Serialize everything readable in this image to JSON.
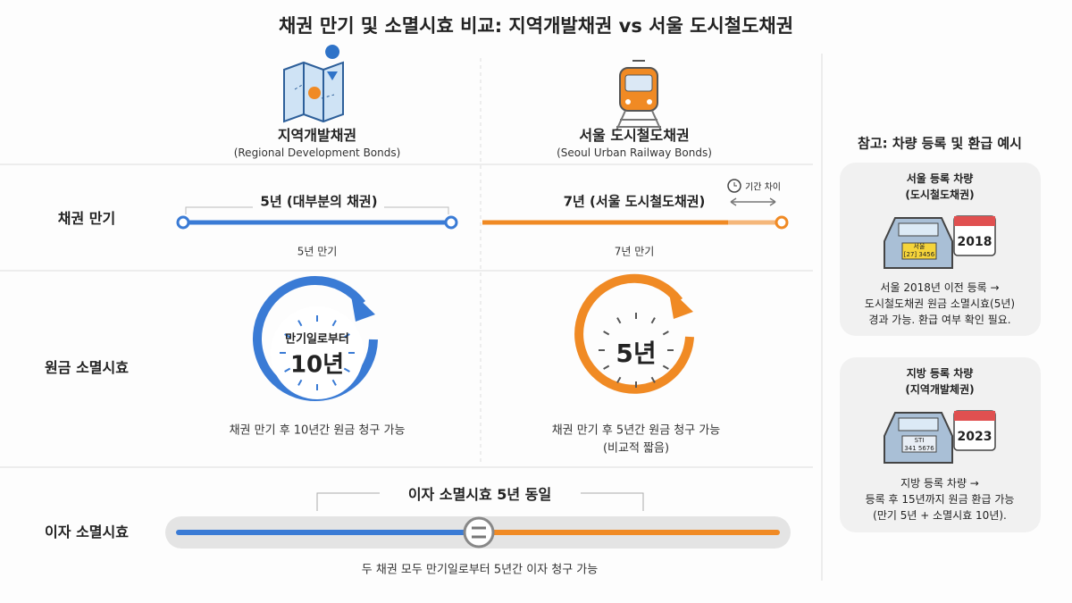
{
  "header": {
    "title": "채권 만기 및 소멸시효 비교: 지역개발채권 vs 서울 도시철도채권"
  },
  "columns": [
    {
      "name": "지역개발채권",
      "subtitle": "(Regional Development Bonds)"
    },
    {
      "name": "서울 도시철도채권",
      "subtitle": "(Seoul Urban Railway Bonds)"
    }
  ],
  "rows": [
    "채권 만기",
    "원금 소멸시효",
    "이자 소멸시효"
  ],
  "maturity": {
    "left": {
      "label": "5년 (대부분의 채권)",
      "caption": "5년 만기"
    },
    "right": {
      "label": "7년 (서울 도시철도채권)",
      "caption": "7년 만기"
    },
    "difference": "기간 차이"
  },
  "principal": {
    "left": {
      "clock_small": "만기일로부터",
      "clock_big": "10년",
      "caption": "채권 만기 후 10년간 원금 청구 가능"
    },
    "right": {
      "clock_big": "5년",
      "caption": "채권 만기 후 5년간 원금 청구 가능",
      "note": "(비교적 짧음)"
    }
  },
  "interest": {
    "label": "이자 소멸시효 5년 동일",
    "caption": "두 채권 모두 만기일로부터 5년간 이자 청구 가능"
  },
  "sidebar": {
    "title": "참고: 차량 등록 및 환급 예시",
    "cards": [
      {
        "title": "서울 등록 차량",
        "subtitle": "(도시철도채권)",
        "plate_top": "서울",
        "plate_bottom": "[27] 3456",
        "year": "2018",
        "lines": [
          "서울 2018년 이전 등록 →",
          "도시철도채권 원금 소멸시효(5년)",
          "경과 가능. 환급 여부 확인 필요."
        ]
      },
      {
        "title": "지방 등록 차량",
        "subtitle": "(지역개발체권)",
        "plate_top": "STI",
        "plate_bottom": "341 5676",
        "year": "2023",
        "lines": [
          "지방 등록 차량 →",
          "등록 후 15년까지 원금 환급 가능",
          "(만기 5년 + 소멸시효 10년)."
        ]
      }
    ]
  }
}
